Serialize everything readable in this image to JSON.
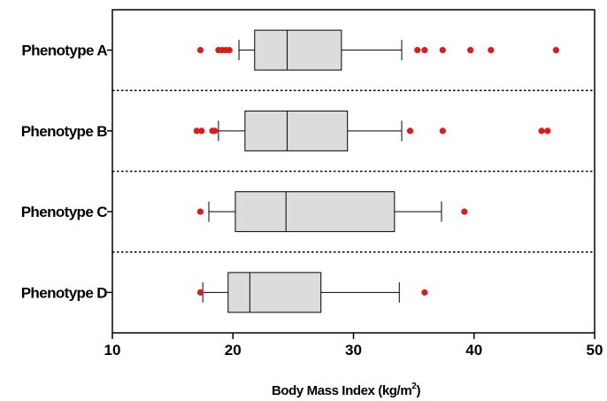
{
  "chart_data": {
    "type": "boxplot",
    "orientation": "horizontal",
    "xlabel": "Body Mass Index (kg/m",
    "xlabel_superscript": "2",
    "xlabel_suffix": ")",
    "xlim": [
      10,
      50
    ],
    "xticks": [
      10,
      20,
      30,
      40,
      50
    ],
    "grid": false,
    "categories": [
      "Phenotype A",
      "Phenotype B",
      "Phenotype C",
      "Phenotype D"
    ],
    "series": [
      {
        "category": "Phenotype A",
        "whisker_low": 20.5,
        "q1": 21.8,
        "median": 24.5,
        "q3": 29.0,
        "whisker_high": 34.0,
        "outliers": [
          17.3,
          18.8,
          19.1,
          19.4,
          19.7,
          35.3,
          35.9,
          37.4,
          39.7,
          41.4,
          46.8
        ]
      },
      {
        "category": "Phenotype B",
        "whisker_low": 18.8,
        "q1": 21.0,
        "median": 24.5,
        "q3": 29.5,
        "whisker_high": 34.0,
        "outliers": [
          17.0,
          17.4,
          18.3,
          18.5,
          34.7,
          37.4,
          45.6,
          46.1
        ]
      },
      {
        "category": "Phenotype C",
        "whisker_low": 18.0,
        "q1": 20.2,
        "median": 24.4,
        "q3": 33.4,
        "whisker_high": 37.3,
        "outliers": [
          17.3,
          39.2
        ]
      },
      {
        "category": "Phenotype D",
        "whisker_low": 17.5,
        "q1": 19.6,
        "median": 21.4,
        "q3": 27.3,
        "whisker_high": 33.8,
        "outliers": [
          17.3,
          35.9
        ]
      }
    ],
    "colors": {
      "box_fill": "#dcdcdc",
      "box_stroke": "#000000",
      "outlier": "#e11919",
      "axis": "#000000",
      "separator": "#000000"
    }
  }
}
